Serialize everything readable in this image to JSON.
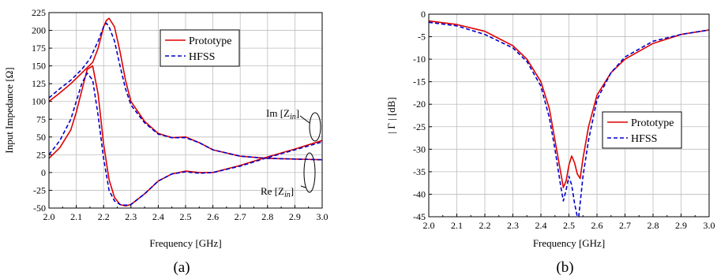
{
  "chart_data": [
    {
      "type": "line",
      "panel_label": "(a)",
      "xlabel": "Frequency [GHz]",
      "ylabel": "Input Impedance [Ω]",
      "xlim": [
        2.0,
        3.0
      ],
      "ylim": [
        -50,
        225
      ],
      "xticks": [
        "2.0",
        "2.1",
        "2.2",
        "2.3",
        "2.4",
        "2.5",
        "2.6",
        "2.7",
        "2.8",
        "2.9",
        "3.0"
      ],
      "yticks": [
        "-50",
        "-25",
        "0",
        "25",
        "50",
        "75",
        "100",
        "125",
        "150",
        "175",
        "200",
        "225"
      ],
      "grid": true,
      "legend_position": "top-right",
      "legend": [
        {
          "name": "Prototype",
          "color": "#e00000",
          "style": "solid"
        },
        {
          "name": "HFSS",
          "color": "#0000cc",
          "style": "dashed"
        }
      ],
      "annotations": [
        {
          "base": "Im [Z",
          "sub": "in",
          "close": "]"
        },
        {
          "base": "Re [Z",
          "sub": "in",
          "close": "]"
        }
      ],
      "series": [
        {
          "name": "Prototype",
          "quantity": "Re [Zin]",
          "x": [
            2.0,
            2.04,
            2.08,
            2.12,
            2.16,
            2.18,
            2.2,
            2.21,
            2.22,
            2.24,
            2.26,
            2.28,
            2.3,
            2.35,
            2.4,
            2.45,
            2.5,
            2.55,
            2.6,
            2.7,
            2.8,
            2.9,
            3.0
          ],
          "y": [
            100,
            112,
            125,
            140,
            155,
            175,
            205,
            214,
            217,
            205,
            170,
            130,
            100,
            72,
            55,
            49,
            50,
            42,
            32,
            23,
            20,
            19,
            18
          ]
        },
        {
          "name": "HFSS",
          "quantity": "Re [Zin]",
          "x": [
            2.0,
            2.04,
            2.08,
            2.12,
            2.15,
            2.18,
            2.2,
            2.21,
            2.22,
            2.24,
            2.26,
            2.28,
            2.3,
            2.35,
            2.4,
            2.45,
            2.5,
            2.55,
            2.6,
            2.7,
            2.8,
            2.9,
            3.0
          ],
          "y": [
            105,
            118,
            130,
            145,
            160,
            185,
            205,
            210,
            205,
            185,
            150,
            118,
            95,
            70,
            54,
            49,
            49,
            42,
            32,
            23,
            20,
            19,
            18
          ]
        },
        {
          "name": "Prototype",
          "quantity": "Im [Zin]",
          "x": [
            2.0,
            2.04,
            2.08,
            2.1,
            2.12,
            2.14,
            2.16,
            2.18,
            2.2,
            2.22,
            2.24,
            2.26,
            2.28,
            2.3,
            2.35,
            2.4,
            2.45,
            2.5,
            2.55,
            2.6,
            2.7,
            2.8,
            2.9,
            3.0
          ],
          "y": [
            20,
            35,
            60,
            85,
            115,
            145,
            150,
            110,
            40,
            -10,
            -35,
            -45,
            -47,
            -45,
            -30,
            -12,
            -2,
            2,
            0,
            0,
            10,
            22,
            33,
            45
          ]
        },
        {
          "name": "HFSS",
          "quantity": "Im [Zin]",
          "x": [
            2.0,
            2.04,
            2.08,
            2.1,
            2.12,
            2.14,
            2.16,
            2.18,
            2.2,
            2.22,
            2.24,
            2.26,
            2.28,
            2.3,
            2.35,
            2.4,
            2.45,
            2.5,
            2.55,
            2.6,
            2.7,
            2.8,
            2.9,
            3.0
          ],
          "y": [
            25,
            45,
            75,
            100,
            125,
            140,
            130,
            80,
            20,
            -25,
            -40,
            -45,
            -46,
            -45,
            -30,
            -12,
            -2,
            1,
            -1,
            0,
            9,
            21,
            32,
            43
          ]
        }
      ]
    },
    {
      "type": "line",
      "panel_label": "(b)",
      "xlabel": "Frequency [GHz]",
      "ylabel": "| Γ | [dB]",
      "xlim": [
        2.0,
        3.0
      ],
      "ylim": [
        -45,
        0
      ],
      "xticks": [
        "2.0",
        "2.1",
        "2.2",
        "2.3",
        "2.4",
        "2.5",
        "2.6",
        "2.7",
        "2.8",
        "2.9",
        "3.0"
      ],
      "yticks": [
        "0",
        "-5",
        "-10",
        "-15",
        "-20",
        "-25",
        "-30",
        "-35",
        "-40",
        "-45"
      ],
      "grid": true,
      "legend_position": "right",
      "legend": [
        {
          "name": "Prototype",
          "color": "#e00000",
          "style": "solid"
        },
        {
          "name": "HFSS",
          "color": "#0000cc",
          "style": "dashed"
        }
      ],
      "series": [
        {
          "name": "Prototype",
          "x": [
            2.0,
            2.1,
            2.2,
            2.3,
            2.35,
            2.4,
            2.43,
            2.45,
            2.47,
            2.48,
            2.49,
            2.5,
            2.51,
            2.52,
            2.53,
            2.54,
            2.55,
            2.57,
            2.6,
            2.65,
            2.7,
            2.8,
            2.9,
            3.0
          ],
          "y": [
            -1.5,
            -2.3,
            -3.8,
            -7,
            -10,
            -15,
            -21,
            -28,
            -35,
            -38.5,
            -37,
            -33.5,
            -31.5,
            -33,
            -35.5,
            -36.5,
            -32,
            -25,
            -18,
            -13,
            -10,
            -6.5,
            -4.5,
            -3.5
          ]
        },
        {
          "name": "HFSS",
          "x": [
            2.0,
            2.1,
            2.2,
            2.3,
            2.35,
            2.4,
            2.43,
            2.45,
            2.47,
            2.48,
            2.49,
            2.5,
            2.51,
            2.52,
            2.53,
            2.535,
            2.54,
            2.55,
            2.57,
            2.6,
            2.65,
            2.7,
            2.8,
            2.9,
            3.0
          ],
          "y": [
            -1.8,
            -2.6,
            -4.5,
            -7.5,
            -10.5,
            -16,
            -23,
            -30,
            -38,
            -41.5,
            -39,
            -36,
            -38,
            -42,
            -45.5,
            -45.5,
            -42,
            -36,
            -28,
            -19,
            -13,
            -9.5,
            -6,
            -4.5,
            -3.5
          ]
        }
      ]
    }
  ]
}
